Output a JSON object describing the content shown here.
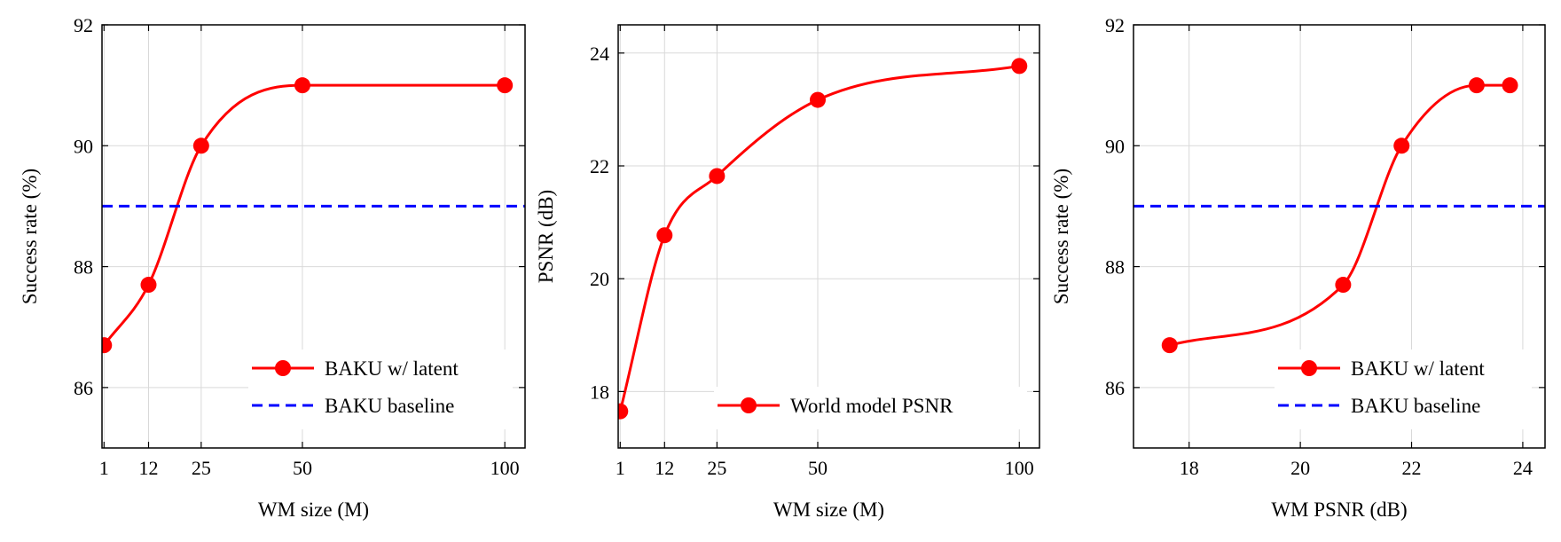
{
  "colors": {
    "series": "#ff0000",
    "baseline": "#0000ff",
    "grid": "#d9d9d9",
    "axis": "#000000"
  },
  "chart_data": [
    {
      "type": "line",
      "xlabel": "WM size (M)",
      "ylabel": "Success rate (%)",
      "xlim": [
        0.5,
        105
      ],
      "ylim": [
        85,
        92
      ],
      "xticks": [
        1,
        12,
        25,
        50,
        100
      ],
      "yticks": [
        86,
        88,
        90,
        92
      ],
      "grid": true,
      "legend": "bottom-right",
      "series": [
        {
          "name": "BAKU w/ latent",
          "style": "solid-marker",
          "x": [
            1,
            12,
            25,
            50,
            100
          ],
          "y": [
            86.7,
            87.7,
            90.0,
            91.0,
            91.0
          ]
        },
        {
          "name": "BAKU baseline",
          "style": "dashed",
          "x": [
            0.5,
            105
          ],
          "y": [
            89.0,
            89.0
          ]
        }
      ]
    },
    {
      "type": "line",
      "xlabel": "WM size (M)",
      "ylabel": "PSNR (dB)",
      "xlim": [
        0.5,
        105
      ],
      "ylim": [
        17,
        24.5
      ],
      "xticks": [
        1,
        12,
        25,
        50,
        100
      ],
      "yticks": [
        18,
        20,
        22,
        24
      ],
      "grid": true,
      "legend": "bottom-right",
      "series": [
        {
          "name": "World model PSNR",
          "style": "solid-marker",
          "x": [
            1,
            12,
            25,
            50,
            100
          ],
          "y": [
            17.65,
            20.77,
            21.82,
            23.17,
            23.77
          ]
        }
      ]
    },
    {
      "type": "line",
      "xlabel": "WM PSNR (dB)",
      "ylabel": "Success rate (%)",
      "xlim": [
        17,
        24.4
      ],
      "ylim": [
        85,
        92
      ],
      "xticks": [
        18,
        20,
        22,
        24
      ],
      "yticks": [
        86,
        88,
        90,
        92
      ],
      "grid": true,
      "legend": "bottom-right",
      "series": [
        {
          "name": "BAKU w/ latent",
          "style": "solid-marker",
          "x": [
            17.65,
            20.77,
            21.82,
            23.17,
            23.77
          ],
          "y": [
            86.7,
            87.7,
            90.0,
            91.0,
            91.0
          ]
        },
        {
          "name": "BAKU baseline",
          "style": "dashed",
          "x": [
            17,
            24.4
          ],
          "y": [
            89.0,
            89.0
          ]
        }
      ]
    }
  ]
}
